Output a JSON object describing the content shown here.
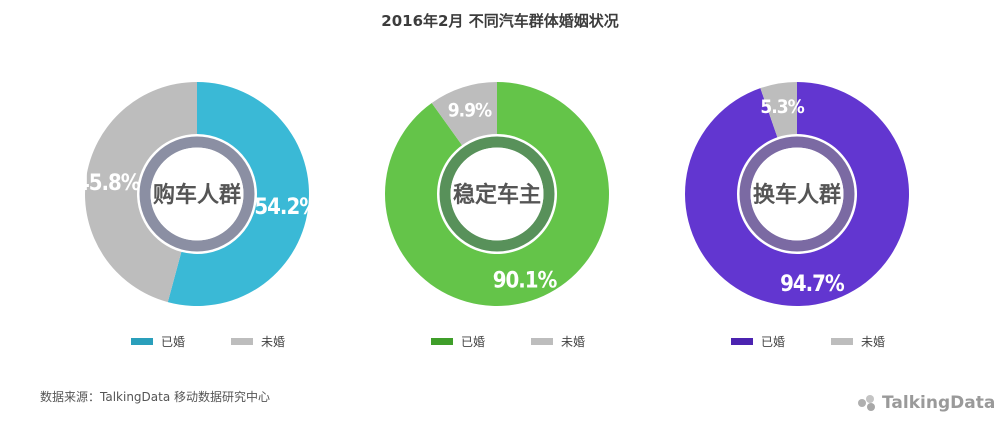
{
  "title": "2016年2月 不同汽车群体婚姻状况",
  "source": "数据来源：TalkingData 移动数据研究中心",
  "logo_text": "TalkingData",
  "chart_data": [
    {
      "type": "pie",
      "center_label": "购车人群",
      "categories": [
        "已婚",
        "未婚"
      ],
      "values": [
        54.2,
        45.8
      ],
      "value_labels": [
        "54.2%",
        "45.8%"
      ],
      "colors": [
        "#3ab9d6",
        "#bdbdbd"
      ],
      "legend_colors": [
        "#2a9fbb",
        "#bdbdbd"
      ],
      "inner_ring_color": "#8b8fa3"
    },
    {
      "type": "pie",
      "center_label": "稳定车主",
      "categories": [
        "已婚",
        "未婚"
      ],
      "values": [
        90.1,
        9.9
      ],
      "value_labels": [
        "90.1%",
        "9.9%"
      ],
      "colors": [
        "#64c449",
        "#bdbdbd"
      ],
      "legend_colors": [
        "#3f9e2a",
        "#bdbdbd"
      ],
      "inner_ring_color": "#58915a"
    },
    {
      "type": "pie",
      "center_label": "换车人群",
      "categories": [
        "已婚",
        "未婚"
      ],
      "values": [
        94.7,
        5.3
      ],
      "value_labels": [
        "94.7%",
        "5.3%"
      ],
      "colors": [
        "#6236d0",
        "#bdbdbd"
      ],
      "legend_colors": [
        "#4b23b0",
        "#bdbdbd"
      ],
      "inner_ring_color": "#7b6aa3"
    }
  ]
}
